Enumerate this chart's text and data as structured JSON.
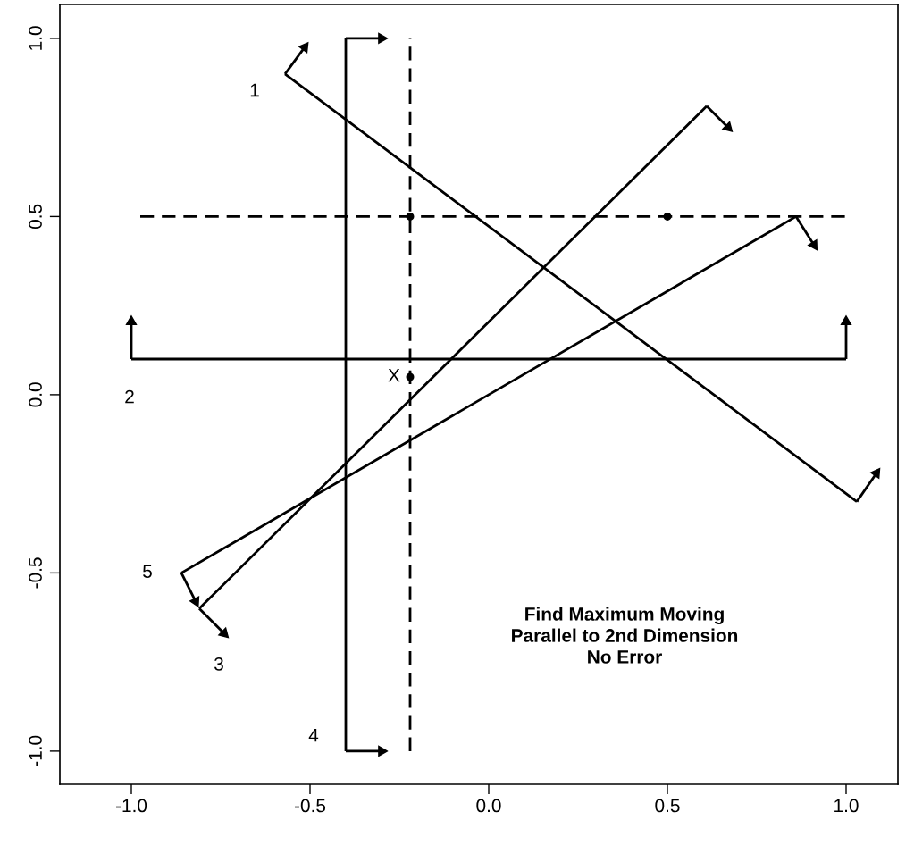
{
  "chart_data": {
    "type": "line",
    "xlim": [
      -1.2,
      1.145
    ],
    "ylim": [
      -1.093,
      1.095
    ],
    "xticks": [
      {
        "value": -1,
        "label": "-1.0"
      },
      {
        "value": -0.5,
        "label": "-0.5"
      },
      {
        "value": 0,
        "label": "0.0"
      },
      {
        "value": 0.5,
        "label": "0.5"
      },
      {
        "value": 1,
        "label": "1.0"
      }
    ],
    "yticks": [
      {
        "value": -1,
        "label": "-1.0"
      },
      {
        "value": -0.5,
        "label": "-0.5"
      },
      {
        "value": 0,
        "label": "0.0"
      },
      {
        "value": 0.5,
        "label": "0.5"
      },
      {
        "value": 1,
        "label": "1.0"
      }
    ],
    "grid": false,
    "legend": false,
    "marker": "none",
    "series": [
      {
        "color": "#000000",
        "x": [
          -0.57,
          1.03
        ],
        "values": [
          0.9,
          -0.3
        ]
      },
      {
        "color": "#000000",
        "x": [
          -1.0,
          1.0
        ],
        "values": [
          0.1,
          0.1
        ]
      },
      {
        "color": "#000000",
        "x": [
          -0.81,
          0.61
        ],
        "values": [
          -0.6,
          0.81
        ]
      },
      {
        "color": "#000000",
        "x": [
          -0.4,
          -0.4
        ],
        "values": [
          -1.0,
          1.0
        ]
      },
      {
        "color": "#000000",
        "x": [
          -0.86,
          0.86
        ],
        "values": [
          -0.5,
          0.5
        ]
      },
      {
        "color": "#000000",
        "line_style": "dashed",
        "x": [
          -0.975,
          1.0
        ],
        "values": [
          0.5,
          0.5
        ]
      },
      {
        "color": "#000000",
        "line_style": "dashed",
        "x": [
          -0.22,
          -0.22
        ],
        "values": [
          -1.0,
          1.0
        ]
      },
      {
        "color": "#000000",
        "marker": "triangle",
        "x": [
          -0.57,
          -0.515
        ],
        "values": [
          0.9,
          0.975
        ]
      },
      {
        "color": "#000000",
        "marker": "triangle",
        "x": [
          1.03,
          1.085
        ],
        "values": [
          -0.3,
          -0.22
        ]
      },
      {
        "color": "#000000",
        "marker": "triangle",
        "x": [
          -1.0,
          -1.0
        ],
        "values": [
          0.1,
          0.205
        ]
      },
      {
        "color": "#000000",
        "marker": "triangle",
        "x": [
          1.0,
          1.0
        ],
        "values": [
          0.1,
          0.205
        ]
      },
      {
        "color": "#000000",
        "marker": "triangle",
        "x": [
          -0.81,
          -0.74
        ],
        "values": [
          -0.6,
          -0.67
        ]
      },
      {
        "color": "#000000",
        "marker": "triangle",
        "x": [
          0.61,
          0.67
        ],
        "values": [
          0.81,
          0.75
        ]
      },
      {
        "color": "#000000",
        "marker": "triangle",
        "x": [
          -0.4,
          -0.3
        ],
        "values": [
          1.0,
          1.0
        ]
      },
      {
        "color": "#000000",
        "marker": "triangle",
        "x": [
          -0.4,
          -0.3
        ],
        "values": [
          -1.0,
          -1.0
        ]
      },
      {
        "color": "#000000",
        "marker": "triangle",
        "x": [
          -0.86,
          -0.82
        ],
        "values": [
          -0.5,
          -0.58
        ]
      },
      {
        "color": "#000000",
        "marker": "triangle",
        "x": [
          0.86,
          0.91
        ],
        "values": [
          0.5,
          0.42
        ]
      },
      {
        "type": "scatter",
        "color": "#000000",
        "marker": "circle",
        "x": [
          -0.22,
          0.5,
          -0.22
        ],
        "values": [
          0.5,
          0.5,
          0.05
        ]
      }
    ],
    "annotations": [
      "1",
      "2",
      "3",
      "4",
      "5",
      "X",
      "Find Maximum Moving\nParallel to 2nd Dimension\nNo Error"
    ]
  }
}
